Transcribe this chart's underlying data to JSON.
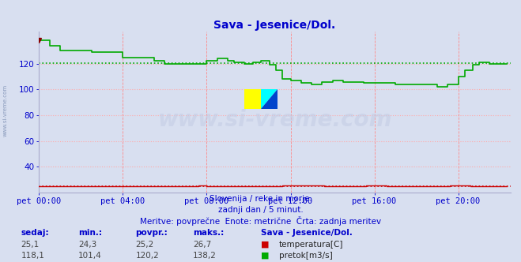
{
  "title": "Sava - Jesenice/Dol.",
  "title_color": "#0000cc",
  "bg_color": "#d8dff0",
  "plot_bg_color": "#d8dff0",
  "xlabel_texts": [
    "pet 00:00",
    "pet 04:00",
    "pet 08:00",
    "pet 12:00",
    "pet 16:00",
    "pet 20:00"
  ],
  "xtick_positions": [
    0,
    4,
    8,
    12,
    16,
    20
  ],
  "xlim": [
    0,
    22.5
  ],
  "ylim": [
    20,
    145
  ],
  "yticks": [
    40,
    60,
    80,
    100,
    120
  ],
  "tick_color": "#0000cc",
  "grid_color_h": "#ffaaaa",
  "grid_color_v": "#ff8888",
  "temp_avg": 25.2,
  "flow_avg": 120.2,
  "temp_color": "#cc0000",
  "flow_color": "#00aa00",
  "footer_lines": [
    "Slovenija / reke in morje.",
    "zadnji dan / 5 minut.",
    "Meritve: povprečne  Enote: metrične  Črta: zadnja meritev"
  ],
  "footer_color": "#0000cc",
  "legend_title": "Sava - Jesenice/Dol.",
  "legend_color": "#0000cc",
  "table_headers": [
    "sedaj:",
    "min.:",
    "povpr.:",
    "maks.:"
  ],
  "table_temp": [
    "25,1",
    "24,3",
    "25,2",
    "26,7"
  ],
  "table_flow": [
    "118,1",
    "101,4",
    "120,2",
    "138,2"
  ],
  "table_color": "#0000cc",
  "watermark": "www.si-vreme.com",
  "left_label": "www.si-vreme.com",
  "left_label_color": "#8899bb",
  "flow_segments": [
    [
      0.0,
      138
    ],
    [
      0.5,
      134
    ],
    [
      1.0,
      130
    ],
    [
      2.5,
      129
    ],
    [
      4.0,
      125
    ],
    [
      5.5,
      122
    ],
    [
      6.0,
      120
    ],
    [
      7.5,
      120
    ],
    [
      8.0,
      122
    ],
    [
      8.5,
      124
    ],
    [
      9.0,
      122
    ],
    [
      9.3,
      121
    ],
    [
      9.8,
      120
    ],
    [
      10.2,
      121
    ],
    [
      10.6,
      122
    ],
    [
      11.0,
      119
    ],
    [
      11.3,
      115
    ],
    [
      11.6,
      108
    ],
    [
      12.0,
      107
    ],
    [
      12.5,
      105
    ],
    [
      13.0,
      104
    ],
    [
      13.5,
      106
    ],
    [
      14.0,
      107
    ],
    [
      14.5,
      106
    ],
    [
      15.0,
      106
    ],
    [
      15.5,
      105
    ],
    [
      16.5,
      105
    ],
    [
      17.0,
      104
    ],
    [
      18.0,
      104
    ],
    [
      19.0,
      102
    ],
    [
      19.5,
      104
    ],
    [
      20.0,
      110
    ],
    [
      20.3,
      115
    ],
    [
      20.7,
      119
    ],
    [
      21.0,
      121
    ],
    [
      21.5,
      120
    ],
    [
      22.3,
      120
    ]
  ],
  "temp_segments": [
    [
      0.0,
      25.0
    ],
    [
      7.5,
      25.0
    ],
    [
      7.6,
      25.5
    ],
    [
      8.0,
      25.0
    ],
    [
      11.5,
      25.0
    ],
    [
      11.6,
      25.3
    ],
    [
      13.5,
      25.3
    ],
    [
      13.6,
      25.0
    ],
    [
      15.5,
      25.0
    ],
    [
      15.6,
      25.4
    ],
    [
      16.5,
      25.4
    ],
    [
      16.6,
      25.0
    ],
    [
      19.5,
      25.0
    ],
    [
      19.6,
      25.3
    ],
    [
      20.5,
      25.3
    ],
    [
      20.6,
      25.0
    ],
    [
      22.3,
      25.0
    ]
  ]
}
